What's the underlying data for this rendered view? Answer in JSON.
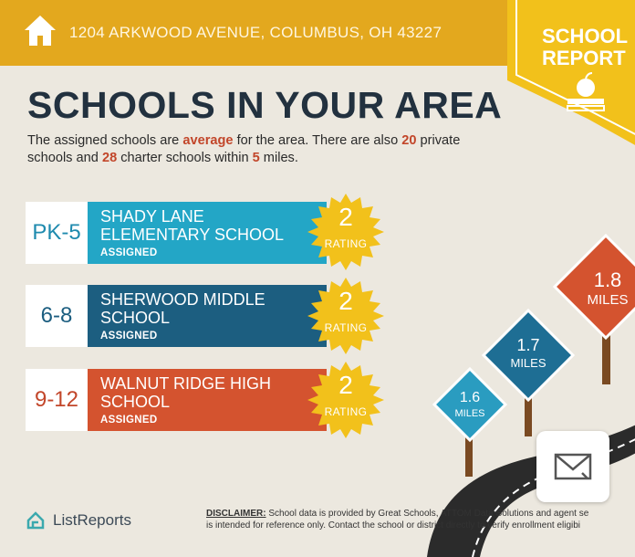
{
  "header": {
    "address": "1204 ARKWOOD AVENUE, COLUMBUS, OH 43227",
    "home_icon": "house-icon",
    "bg_color": "#E3A81E"
  },
  "badge": {
    "line1": "SCHOOL",
    "line2": "REPORT",
    "icon": "apple-on-books-icon",
    "color": "#F2C11B"
  },
  "title": "SCHOOLS IN YOUR AREA",
  "intro": {
    "part1": "The assigned schools are ",
    "quality": "average",
    "part2": " for the area. There are also ",
    "private_count": "20",
    "part3": " private schools and ",
    "charter_count": "28",
    "part4": " charter schools within ",
    "radius": "5",
    "part5": " miles."
  },
  "schools": [
    {
      "grades": "PK-5",
      "name": "SHADY LANE ELEMENTARY SCHOOL",
      "status": "ASSIGNED",
      "rating": "2",
      "rating_label": "RATING",
      "color": "#23A6C6",
      "grade_color": "#1E8AAE"
    },
    {
      "grades": "6-8",
      "name": "SHERWOOD MIDDLE SCHOOL",
      "status": "ASSIGNED",
      "rating": "2",
      "rating_label": "RATING",
      "color": "#1C5E80",
      "grade_color": "#1C5E80"
    },
    {
      "grades": "9-12",
      "name": "WALNUT RIDGE HIGH SCHOOL",
      "status": "ASSIGNED",
      "rating": "2",
      "rating_label": "RATING",
      "color": "#D4532F",
      "grade_color": "#C2462A"
    }
  ],
  "signs": [
    {
      "distance": "1.6",
      "unit": "MILES",
      "color": "#2A9CC0"
    },
    {
      "distance": "1.7",
      "unit": "MILES",
      "color": "#1E6E94"
    },
    {
      "distance": "1.8",
      "unit": "MILES",
      "color": "#D4532F"
    }
  ],
  "mail_icon": "mail-icon",
  "footer": {
    "logo_text": "ListReports",
    "disclaimer_label": "DISCLAIMER:",
    "disclaimer_line1": " School data is provided by Great Schools, ATTOM Data Solutions and agent se",
    "disclaimer_line2": "is intended for reference only. Contact the school or district directly to verify enrollment eligibi"
  },
  "colors": {
    "background": "#ECE8DF",
    "title": "#22313F",
    "highlight": "#C2462A",
    "star": "#F2C11B"
  }
}
